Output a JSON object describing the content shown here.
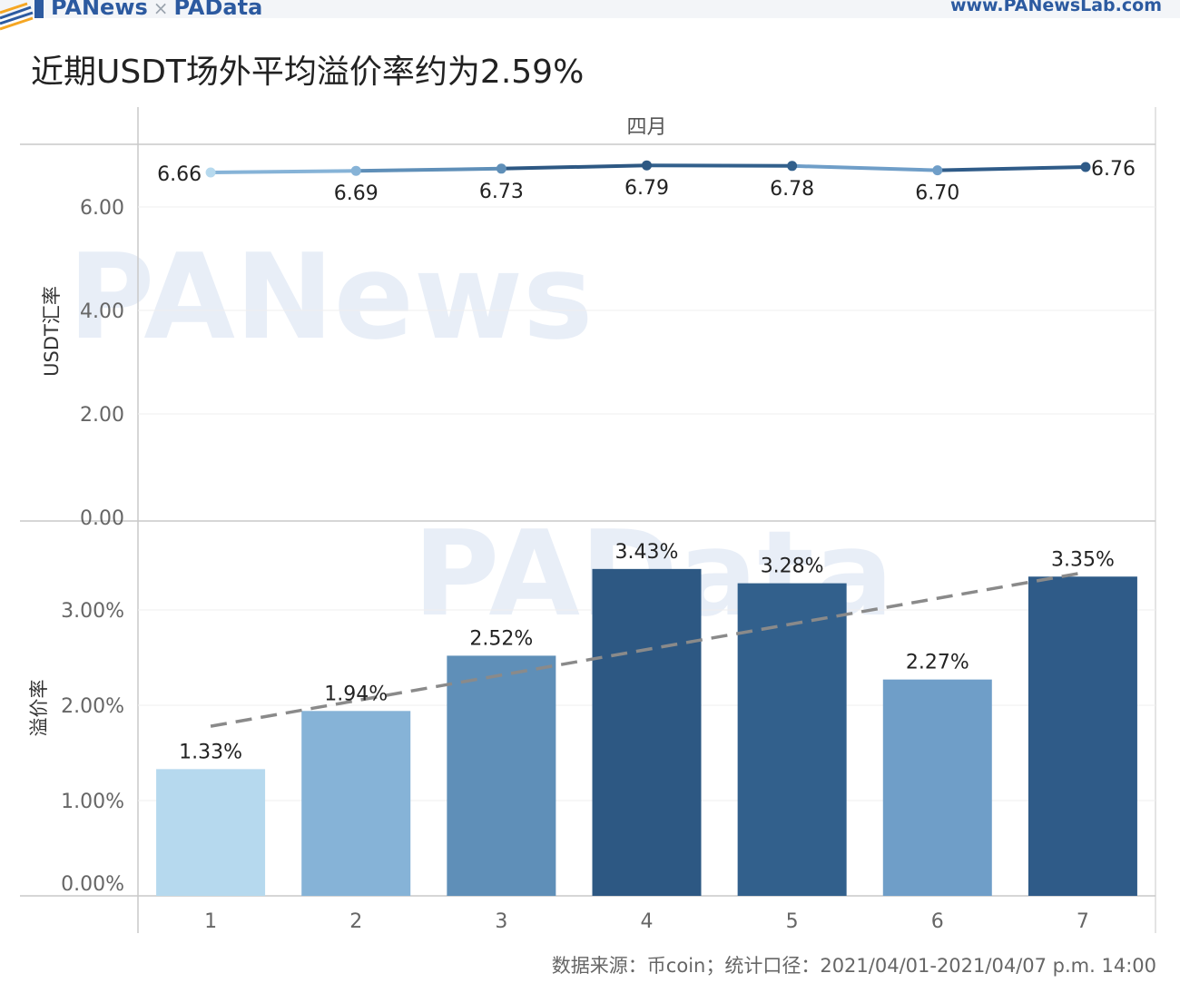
{
  "header": {
    "brand_left": "PANews",
    "brand_sep": "×",
    "brand_right": "PAData",
    "site_url": "www.PANewsLab.com"
  },
  "page_title": "近期USDT场外平均溢价率约为2.59%",
  "watermarks": [
    "PANews",
    "PAData"
  ],
  "source_note": "数据来源：币coin；统计口径：2021/04/01-2021/04/07 p.m. 14:00",
  "chart_data": [
    {
      "type": "line",
      "panel_title": "四月",
      "ylabel": "USDT汇率",
      "ylim": [
        0,
        7
      ],
      "yticks": [
        "0.00",
        "2.00",
        "4.00",
        "6.00"
      ],
      "ytick_values": [
        0,
        2,
        4,
        6
      ],
      "x": [
        "1",
        "2",
        "3",
        "4",
        "5",
        "6",
        "7"
      ],
      "values": [
        6.66,
        6.69,
        6.73,
        6.79,
        6.78,
        6.7,
        6.76
      ],
      "labels": [
        "6.66",
        "6.69",
        "6.73",
        "6.79",
        "6.78",
        "6.70",
        "6.76"
      ],
      "colors": [
        "#b6d9ee",
        "#86b3d7",
        "#5f8fb8",
        "#2d5883",
        "#32608c",
        "#6f9ec8",
        "#2f5b88"
      ],
      "grid": true
    },
    {
      "type": "bar",
      "ylabel": "溢价率",
      "ylim": [
        0,
        0.04
      ],
      "yticks": [
        "0.00%",
        "1.00%",
        "2.00%",
        "3.00%"
      ],
      "ytick_values": [
        0,
        0.01,
        0.02,
        0.03
      ],
      "categories": [
        "1",
        "2",
        "3",
        "4",
        "5",
        "6",
        "7"
      ],
      "values": [
        0.0133,
        0.0194,
        0.0252,
        0.0343,
        0.0328,
        0.0227,
        0.0335
      ],
      "labels": [
        "1.33%",
        "1.94%",
        "2.52%",
        "3.43%",
        "3.28%",
        "2.27%",
        "3.35%"
      ],
      "colors": [
        "#b6d9ee",
        "#86b3d7",
        "#5f8fb8",
        "#2d5883",
        "#32608c",
        "#6f9ec8",
        "#2f5b88"
      ],
      "trendline": {
        "style": "dashed",
        "color": "#8a8a8a",
        "start": 0.0178,
        "end": 0.0339
      },
      "xlabel": "",
      "grid": true
    }
  ]
}
